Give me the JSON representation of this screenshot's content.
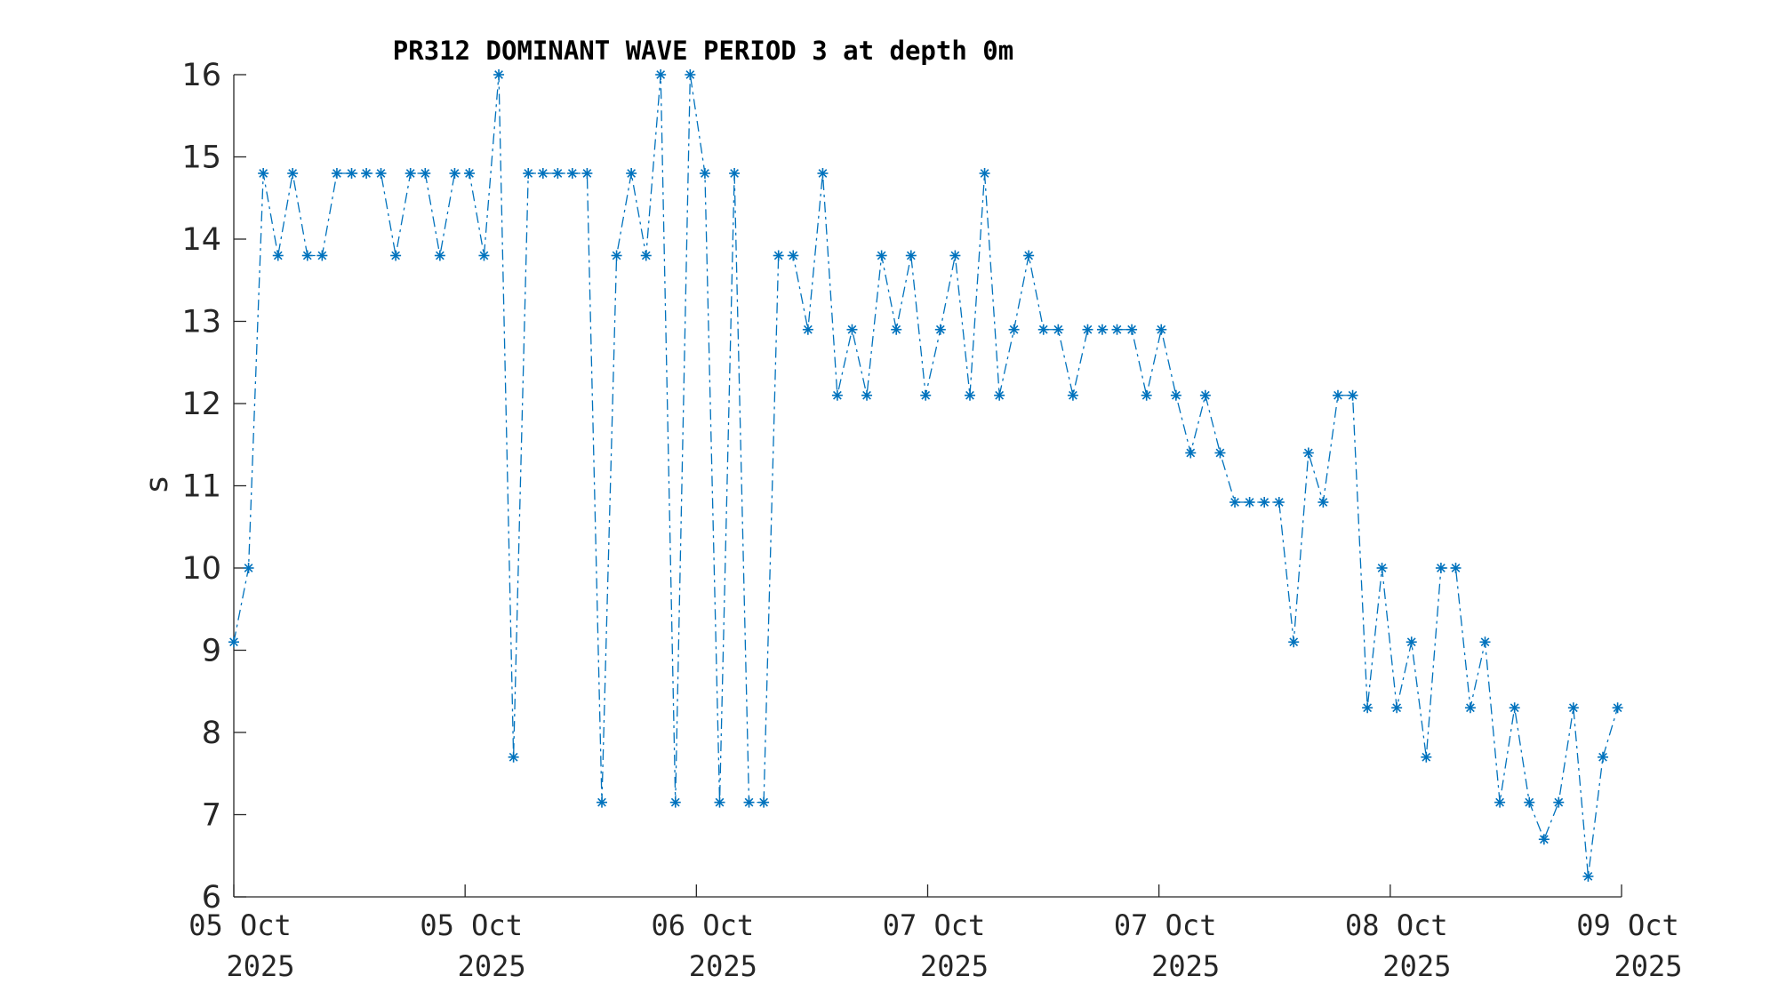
{
  "chart_data": {
    "type": "line",
    "title": "PR312 DOMINANT WAVE PERIOD 3 at depth 0m",
    "xlabel": "",
    "ylabel": "s",
    "ylim": [
      6,
      16
    ],
    "yticks": [
      6,
      7,
      8,
      9,
      10,
      11,
      12,
      13,
      14,
      15,
      16
    ],
    "xlim_hours": [
      0,
      96
    ],
    "xticks": [
      {
        "hours": 0,
        "line1": "05 Oct",
        "line2": "2025"
      },
      {
        "hours": 16,
        "line1": "05 Oct",
        "line2": "2025"
      },
      {
        "hours": 32,
        "line1": "06 Oct",
        "line2": "2025"
      },
      {
        "hours": 48,
        "line1": "07 Oct",
        "line2": "2025"
      },
      {
        "hours": 64,
        "line1": "07 Oct",
        "line2": "2025"
      },
      {
        "hours": 80,
        "line1": "08 Oct",
        "line2": "2025"
      },
      {
        "hours": 96,
        "line1": "09 Oct",
        "line2": "2025"
      }
    ],
    "series": [
      {
        "line_style": "dash-dot",
        "marker": "asterisk",
        "color": "#0072BD",
        "x_hours": [
          0,
          1.02,
          2.04,
          3.06,
          4.07,
          5.09,
          6.11,
          7.13,
          8.15,
          9.17,
          10.18,
          11.2,
          12.22,
          13.24,
          14.26,
          15.28,
          16.3,
          17.31,
          18.33,
          19.35,
          20.37,
          21.39,
          22.41,
          23.42,
          24.44,
          25.46,
          26.48,
          27.5,
          28.52,
          29.53,
          30.55,
          31.57,
          32.59,
          33.61,
          34.63,
          35.64,
          36.66,
          37.68,
          38.7,
          39.72,
          40.74,
          41.75,
          42.77,
          43.79,
          44.81,
          45.83,
          46.85,
          47.86,
          48.88,
          49.9,
          50.92,
          51.94,
          52.96,
          53.97,
          54.99,
          56.01,
          57.03,
          58.05,
          59.07,
          60.08,
          61.1,
          62.12,
          63.14,
          64.16,
          65.18,
          66.19,
          67.21,
          68.23,
          69.25,
          70.27,
          71.29,
          72.31,
          73.32,
          74.34,
          75.36,
          76.38,
          77.4,
          78.42,
          79.43,
          80.45,
          81.47,
          82.49,
          83.51,
          84.53,
          85.54,
          86.56,
          87.58,
          88.6,
          89.62,
          90.64,
          91.65,
          92.67,
          93.69,
          94.71,
          95.73
        ],
        "values": [
          9.1,
          10.0,
          14.8,
          13.8,
          14.8,
          13.8,
          13.8,
          14.8,
          14.8,
          14.8,
          14.8,
          13.8,
          14.8,
          14.8,
          13.8,
          14.8,
          14.8,
          13.8,
          16.0,
          7.7,
          14.8,
          14.8,
          14.8,
          14.8,
          14.8,
          7.15,
          13.8,
          14.8,
          13.8,
          16.0,
          7.15,
          16.0,
          14.8,
          7.15,
          14.8,
          7.15,
          7.15,
          13.8,
          13.8,
          12.9,
          14.8,
          12.1,
          12.9,
          12.1,
          13.8,
          12.9,
          13.8,
          12.1,
          12.9,
          13.8,
          12.1,
          14.8,
          12.1,
          12.9,
          13.8,
          12.9,
          12.9,
          12.1,
          12.9,
          12.9,
          12.9,
          12.9,
          12.1,
          12.9,
          12.1,
          11.4,
          12.1,
          11.4,
          10.8,
          10.8,
          10.8,
          10.8,
          9.1,
          11.4,
          10.8,
          12.1,
          12.1,
          8.3,
          10.0,
          8.3,
          9.1,
          7.7,
          10.0,
          10.0,
          8.3,
          9.1,
          7.15,
          8.3,
          7.15,
          6.7,
          7.15,
          8.3,
          6.25,
          7.7,
          8.3
        ]
      }
    ]
  }
}
